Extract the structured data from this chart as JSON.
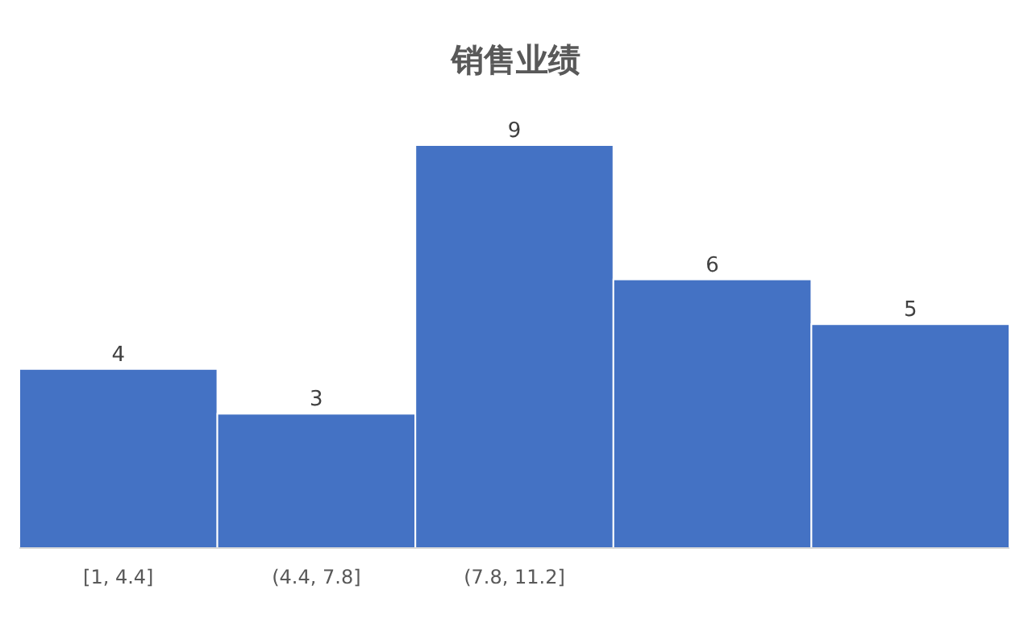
{
  "chart_data": {
    "type": "bar",
    "title": "销售业绩",
    "categories": [
      "[1, 4.4]",
      "(4.4, 7.8]",
      "(7.8, 11.2]",
      null,
      null
    ],
    "values": [
      4,
      3,
      9,
      6,
      5
    ],
    "color": "#4472c4",
    "data_labels": true
  }
}
